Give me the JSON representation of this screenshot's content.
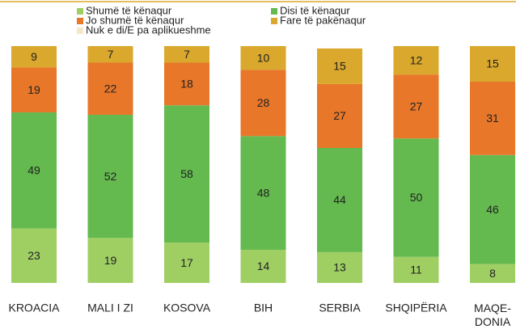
{
  "chart_data": {
    "type": "stacked_bar",
    "categories": [
      "KROACIA",
      "MALI I ZI",
      "KOSOVA",
      "BIH",
      "SERBIA",
      "SHQIPËRIA",
      "MAQE-DONIA"
    ],
    "ylim": [
      0,
      100
    ],
    "series": [
      {
        "name": "Shumë të kënaqur",
        "color": "#9fcf63",
        "values": [
          23,
          19,
          17,
          14,
          13,
          11,
          8
        ]
      },
      {
        "name": "Disi të kënaqur",
        "color": "#64b94f",
        "values": [
          49,
          52,
          58,
          48,
          44,
          50,
          46
        ]
      },
      {
        "name": "Jo shumë të kënaqur",
        "color": "#e8772a",
        "values": [
          19,
          22,
          18,
          28,
          27,
          27,
          31
        ]
      },
      {
        "name": "Fare të pakënaqur",
        "color": "#d9a82c",
        "values": [
          9,
          7,
          7,
          10,
          15,
          12,
          15
        ]
      },
      {
        "name": "Nuk e di/E pa aplikueshme",
        "color": "#f6e7cb",
        "values": [
          null,
          null,
          null,
          null,
          null,
          null,
          null
        ]
      }
    ]
  }
}
